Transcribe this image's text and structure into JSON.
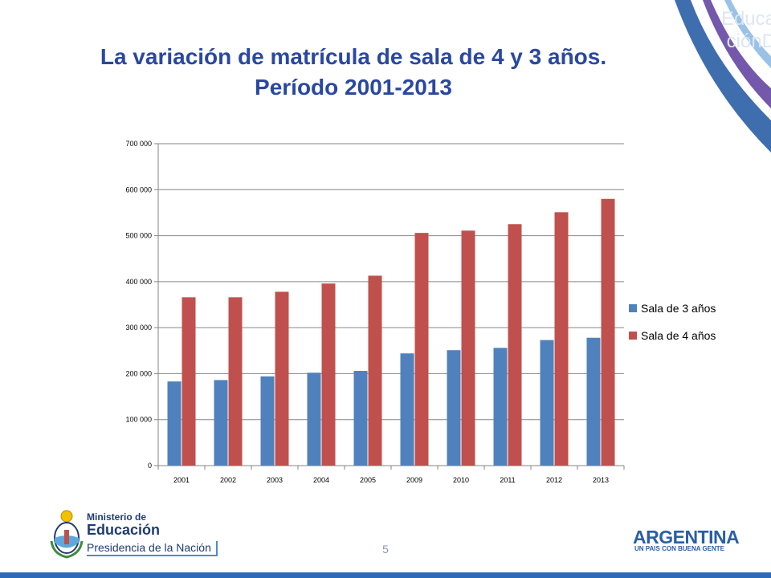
{
  "slide": {
    "title_line1": "La variación de matrícula de sala de 4  y 3 años.",
    "title_line2": "Período 2001-2013",
    "page_number": "5",
    "watermark_line1": "Educa",
    "watermark_line2": "ciónD"
  },
  "logos": {
    "ministry_line1": "Ministerio de",
    "ministry_line2": "Educación",
    "ministry_line3": "Presidencia de la Nación",
    "country": "ARGENTINA",
    "slogan": "UN PAIS CON BUENA GENTE"
  },
  "colors": {
    "title": "#2a48a0",
    "series1": "#4f81bd",
    "series2": "#c0504d",
    "bottom_bar": "#2a6ab8"
  },
  "chart_data": {
    "type": "bar",
    "title": "",
    "xlabel": "",
    "ylabel": "",
    "categories": [
      "2001",
      "2002",
      "2003",
      "2004",
      "2005",
      "2009",
      "2010",
      "2011",
      "2012",
      "2013"
    ],
    "series": [
      {
        "name": "Sala de 3 años",
        "color": "#4f81bd",
        "values": [
          183000,
          186000,
          194000,
          202000,
          206000,
          244000,
          251000,
          256000,
          273000,
          278000
        ]
      },
      {
        "name": "Sala de 4 años",
        "color": "#c0504d",
        "values": [
          366000,
          366000,
          378000,
          396000,
          413000,
          506000,
          511000,
          525000,
          551000,
          580000
        ]
      }
    ],
    "ylim": [
      0,
      700000
    ],
    "yticks": [
      0,
      100000,
      200000,
      300000,
      400000,
      500000,
      600000,
      700000
    ],
    "ytick_labels": [
      "0",
      "100 000",
      "200 000",
      "300 000",
      "400 000",
      "500 000",
      "600 000",
      "700 000"
    ],
    "grid": true,
    "legend_position": "right"
  }
}
